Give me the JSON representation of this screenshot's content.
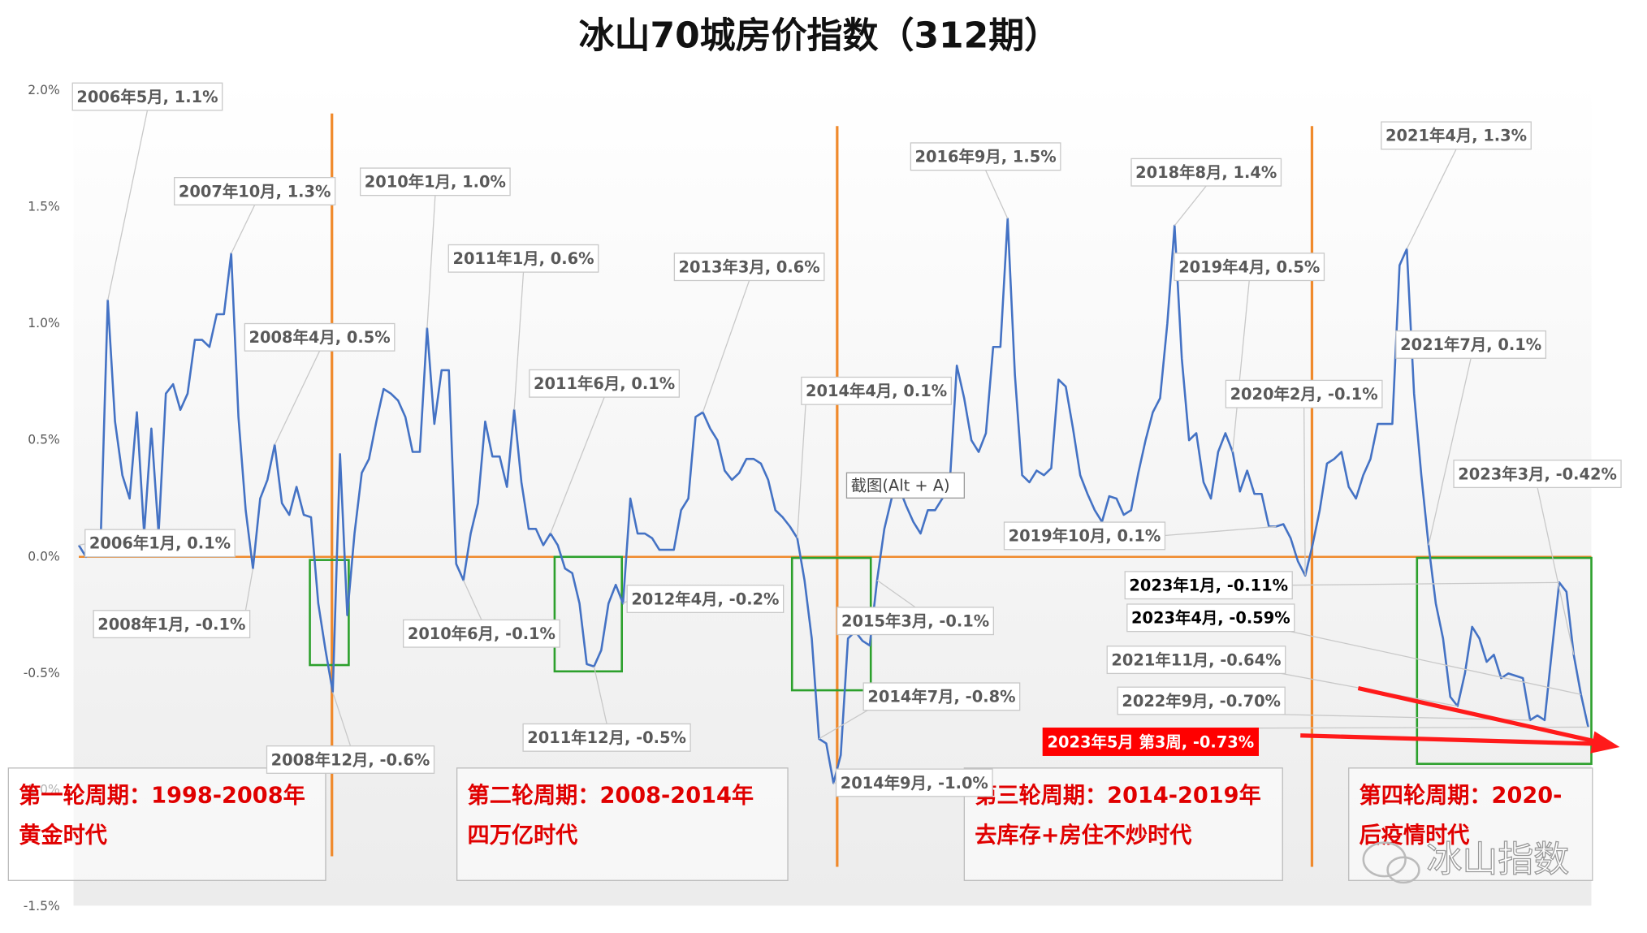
{
  "chart_data": {
    "type": "line",
    "title": "冰山70城房价指数（312期）",
    "color": "#4472c4",
    "grid": false,
    "ylim": [
      -1.5,
      2.0
    ],
    "yticks": [
      {
        "value": 2.0,
        "label": "2.0%"
      },
      {
        "value": 1.5,
        "label": "1.5%"
      },
      {
        "value": 1.0,
        "label": "1.0%"
      },
      {
        "value": 0.5,
        "label": "0.5%"
      },
      {
        "value": 0.0,
        "label": "0.0%"
      },
      {
        "value": -0.5,
        "label": "-0.5%"
      },
      {
        "value": -1.0,
        "label": "-1.0%"
      },
      {
        "value": -1.5,
        "label": "-1.5%"
      }
    ],
    "values": [
      0.05,
      0.0,
      0.05,
      0.05,
      1.1,
      0.58,
      0.35,
      0.25,
      0.62,
      0.1,
      0.55,
      0.1,
      0.7,
      0.74,
      0.63,
      0.7,
      0.93,
      0.93,
      0.9,
      1.04,
      1.04,
      1.3,
      0.6,
      0.2,
      -0.05,
      0.25,
      0.33,
      0.48,
      0.23,
      0.18,
      0.3,
      0.18,
      0.17,
      -0.2,
      -0.4,
      -0.58,
      0.44,
      -0.25,
      0.1,
      0.36,
      0.42,
      0.58,
      0.72,
      0.7,
      0.67,
      0.6,
      0.45,
      0.45,
      0.98,
      0.57,
      0.8,
      0.8,
      -0.03,
      -0.1,
      0.1,
      0.23,
      0.58,
      0.43,
      0.43,
      0.3,
      0.63,
      0.32,
      0.12,
      0.12,
      0.05,
      0.1,
      0.05,
      -0.05,
      -0.07,
      -0.2,
      -0.46,
      -0.47,
      -0.4,
      -0.2,
      -0.12,
      -0.2,
      0.25,
      0.1,
      0.1,
      0.08,
      0.03,
      0.03,
      0.03,
      0.2,
      0.25,
      0.6,
      0.62,
      0.55,
      0.5,
      0.37,
      0.33,
      0.36,
      0.42,
      0.42,
      0.4,
      0.33,
      0.2,
      0.17,
      0.13,
      0.08,
      -0.1,
      -0.35,
      -0.78,
      -0.8,
      -0.97,
      -0.85,
      -0.35,
      -0.32,
      -0.36,
      -0.38,
      -0.1,
      0.12,
      0.25,
      0.3,
      0.22,
      0.15,
      0.1,
      0.2,
      0.2,
      0.25,
      0.3,
      0.82,
      0.68,
      0.5,
      0.45,
      0.53,
      0.9,
      0.9,
      1.45,
      0.78,
      0.35,
      0.32,
      0.37,
      0.35,
      0.38,
      0.76,
      0.73,
      0.55,
      0.35,
      0.27,
      0.2,
      0.15,
      0.26,
      0.25,
      0.18,
      0.2,
      0.36,
      0.5,
      0.62,
      0.68,
      1.0,
      1.42,
      0.85,
      0.5,
      0.53,
      0.32,
      0.25,
      0.45,
      0.53,
      0.45,
      0.28,
      0.37,
      0.27,
      0.27,
      0.13,
      0.13,
      0.14,
      0.08,
      -0.02,
      -0.08,
      0.05,
      0.2,
      0.4,
      0.42,
      0.45,
      0.3,
      0.25,
      0.35,
      0.42,
      0.57,
      0.57,
      0.57,
      1.25,
      1.32,
      0.7,
      0.35,
      0.05,
      -0.2,
      -0.35,
      -0.6,
      -0.64,
      -0.5,
      -0.3,
      -0.35,
      -0.45,
      -0.42,
      -0.52,
      -0.5,
      -0.51,
      -0.52,
      -0.7,
      -0.68,
      -0.7,
      -0.4,
      -0.11,
      -0.15,
      -0.42,
      -0.59,
      -0.73
    ],
    "annotations": [
      "2006年5月, 1.1%",
      "2007年10月, 1.3%",
      "2006年1月, 0.1%",
      "2008年1月, -0.1%",
      "2008年4月, 0.5%",
      "2008年12月, -0.6%",
      "2010年1月, 1.0%",
      "2010年6月, -0.1%",
      "2011年1月, 0.6%",
      "2011年6月, 0.1%",
      "2011年12月, -0.5%",
      "2012年4月, -0.2%",
      "2013年3月, 0.6%",
      "2014年4月, 0.1%",
      "2015年3月, -0.1%",
      "2014年7月, -0.8%",
      "2014年9月, -1.0%",
      "2016年9月, 1.5%",
      "2018年8月, 1.4%",
      "2019年4月, 0.5%",
      "2019年10月, 0.1%",
      "2020年2月, -0.1%",
      "2021年4月, 1.3%",
      "2021年7月, 0.1%",
      "2023年3月, -0.42%",
      "2023年1月, -0.11%",
      "2023年4月, -0.59%",
      "2021年11月, -0.64%",
      "2022年9月, -0.70%",
      "2023年5月 第3周, -0.73%"
    ],
    "cycle_labels": [
      [
        "第一轮周期：1998-2008年",
        "黄金时代"
      ],
      [
        "第二轮周期：2008-2014年",
        "四万亿时代"
      ],
      [
        "第三轮周期：2014-2019年",
        "去库存+房住不炒时代"
      ],
      [
        "第四轮周期：2020-",
        "后疫情时代"
      ]
    ],
    "tooltip": "截图(Alt + A)",
    "watermark": "冰山指数"
  }
}
